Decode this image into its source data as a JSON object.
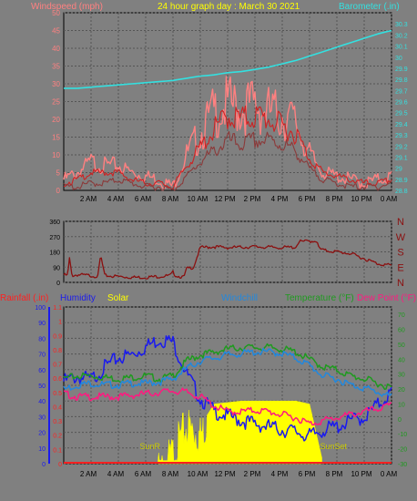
{
  "title": "24 hour graph day : March 30 2021",
  "colors": {
    "background": "#808080",
    "frame": "#000000",
    "title": "#ffff00",
    "windspeed": "#ff8080",
    "windgust_band": "#ff9999",
    "wind_avg": "#cc2222",
    "wind_low": "#8b3a3a",
    "barometer": "#33e0e0",
    "direction": "#8b1010",
    "humidity": "#1a1aee",
    "rainfall": "#ff2020",
    "solar": "#ffff00",
    "windchill": "#2288dd",
    "temperature": "#1f9a1f",
    "dewpoint": "#ff1a80",
    "sun_label": "#c8c800"
  },
  "x_ticks": [
    "2 AM",
    "4 AM",
    "6 AM",
    "8 AM",
    "10 AM",
    "12 PM",
    "2 PM",
    "4 PM",
    "6 PM",
    "8 PM",
    "10 PM",
    "0 AM"
  ],
  "chart_data": [
    {
      "type": "line",
      "title": "24 hour graph day : March 30 2021",
      "left_label": "Windspeed (mph)",
      "right_label": "Barometer (.in)",
      "grid": true,
      "x_hours": [
        0,
        1,
        2,
        3,
        4,
        5,
        6,
        7,
        8,
        9,
        10,
        11,
        12,
        13,
        14,
        15,
        16,
        17,
        18,
        19,
        20,
        21,
        22,
        23,
        24
      ],
      "ylim_left": [
        0,
        50
      ],
      "yticks_left": [
        "5",
        "10",
        "15",
        "20",
        "25",
        "30",
        "35",
        "40",
        "45",
        "50"
      ],
      "ylim_right": [
        28.8,
        30.4
      ],
      "yticks_right": [
        "28.8",
        "28.9",
        "29",
        "29.1",
        "29.2",
        "29.3",
        "29.4",
        "29.5",
        "29.6",
        "29.7",
        "29.8",
        "29.9",
        "30",
        "30.1",
        "30.2",
        "30.3"
      ],
      "series": [
        {
          "key": "windspeed",
          "axis": "left",
          "values": [
            3,
            5,
            8,
            7,
            7,
            5,
            4,
            3,
            1,
            10,
            16,
            22,
            24,
            23,
            24,
            22,
            21,
            19,
            10,
            5,
            4,
            3,
            2,
            3,
            4
          ]
        },
        {
          "key": "wind_avg",
          "axis": "left",
          "values": [
            2,
            3,
            5,
            5,
            5,
            3,
            2,
            2,
            1,
            7,
            12,
            17,
            21,
            20,
            21,
            20,
            18,
            16,
            9,
            5,
            4,
            3,
            2,
            2,
            3
          ]
        },
        {
          "key": "wind_low",
          "axis": "left",
          "values": [
            1,
            1,
            2,
            2,
            3,
            2,
            1,
            1,
            0,
            4,
            8,
            11,
            14,
            13,
            14,
            14,
            13,
            11,
            6,
            3,
            2,
            1,
            1,
            1,
            2
          ]
        },
        {
          "key": "barometer",
          "axis": "right",
          "values": [
            29.72,
            29.72,
            29.73,
            29.74,
            29.75,
            29.76,
            29.77,
            29.78,
            29.79,
            29.81,
            29.83,
            29.84,
            29.86,
            29.87,
            29.89,
            29.91,
            29.94,
            29.97,
            30.01,
            30.05,
            30.09,
            30.13,
            30.17,
            30.21,
            30.24
          ]
        }
      ]
    },
    {
      "type": "line",
      "title": "",
      "grid": true,
      "ylim": [
        0,
        360
      ],
      "yticks": [
        "0",
        "90",
        "180",
        "270",
        "360"
      ],
      "direction_labels": [
        "N",
        "W",
        "S",
        "E",
        "N"
      ],
      "series": [
        {
          "key": "direction",
          "x_hours": [
            0,
            0.3,
            0.4,
            0.6,
            1,
            2,
            2.5,
            2.7,
            3,
            4,
            5,
            6,
            7,
            7.8,
            8,
            8.2,
            8.8,
            9,
            9.5,
            10,
            11,
            12,
            14,
            16,
            17,
            17.2,
            18.5,
            18.7,
            19,
            20,
            21,
            22,
            23,
            24
          ],
          "values": [
            45,
            40,
            150,
            40,
            45,
            40,
            35,
            160,
            40,
            35,
            30,
            30,
            35,
            40,
            60,
            40,
            30,
            80,
            90,
            205,
            210,
            205,
            210,
            205,
            208,
            240,
            245,
            200,
            190,
            180,
            170,
            140,
            110,
            100
          ]
        }
      ]
    },
    {
      "type": "line",
      "title": "",
      "labels": {
        "rainfall": "Rainfall (.in)",
        "humidity": "Humidity",
        "solar": "Solar",
        "windchill": "Windchill",
        "temperature": "Temperature (°F)",
        "dewpoint": "Dew Point (°F)"
      },
      "sunrise_label": "SunR",
      "sunset_label": "SunSet",
      "grid": true,
      "x_hours": [
        0,
        1,
        2,
        3,
        4,
        5,
        6,
        7,
        8,
        9,
        10,
        11,
        12,
        13,
        14,
        15,
        16,
        17,
        18,
        19,
        20,
        21,
        22,
        23,
        24
      ],
      "ylim_humidity": [
        0,
        100
      ],
      "yticks_humidity": [
        "0",
        "10",
        "20",
        "30",
        "40",
        "50",
        "60",
        "70",
        "80",
        "90",
        "100"
      ],
      "ylim_rain": [
        0,
        1.1
      ],
      "yticks_rain": [
        "0",
        "0.1",
        "0.2",
        "0.3",
        "0.4",
        "0.5",
        "0.6",
        "0.7",
        "0.8",
        "0.9",
        "1",
        "1.1"
      ],
      "ylim_temp": [
        -30,
        75
      ],
      "yticks_temp": [
        "-30",
        "-20",
        "-10",
        "0",
        "10",
        "20",
        "30",
        "40",
        "50",
        "60",
        "70"
      ],
      "sunrise_hour": 6.9,
      "sunset_hour": 18.9,
      "rainfall": [
        0,
        0,
        0,
        0,
        0,
        0,
        0,
        0,
        0,
        0,
        0,
        0,
        0,
        0,
        0,
        0,
        0,
        0,
        0,
        0,
        0,
        0,
        0,
        0,
        0
      ],
      "series": [
        {
          "key": "humidity",
          "axis": "humidity",
          "values": [
            55,
            58,
            56,
            64,
            70,
            72,
            77,
            82,
            80,
            60,
            44,
            36,
            33,
            30,
            28,
            26,
            24,
            23,
            20,
            24,
            26,
            30,
            32,
            40,
            48
          ]
        },
        {
          "key": "temperature",
          "axis": "temp",
          "values": [
            28,
            30,
            30,
            29,
            28,
            29,
            30,
            28,
            30,
            40,
            44,
            46,
            48,
            49,
            49,
            49,
            48,
            46,
            41,
            36,
            34,
            30,
            28,
            25,
            22
          ]
        },
        {
          "key": "windchill",
          "axis": "temp",
          "values": [
            21,
            24,
            25,
            24,
            24,
            25,
            25,
            26,
            28,
            35,
            40,
            42,
            44,
            45,
            46,
            46,
            45,
            42,
            37,
            30,
            28,
            24,
            22,
            19,
            16
          ]
        },
        {
          "key": "dewpoint",
          "axis": "temp",
          "values": [
            18,
            16,
            16,
            16,
            16,
            17,
            18,
            19,
            20,
            19,
            16,
            10,
            6,
            6,
            7,
            6,
            4,
            2,
            -2,
            0,
            2,
            4,
            6,
            8,
            10
          ]
        },
        {
          "key": "solar",
          "axis": "humidity",
          "values": [
            0,
            0,
            0,
            0,
            0,
            0,
            0,
            0,
            12,
            30,
            24,
            38,
            39,
            40,
            40,
            40,
            40,
            40,
            38,
            0,
            0,
            0,
            0,
            0,
            0
          ]
        }
      ]
    }
  ]
}
